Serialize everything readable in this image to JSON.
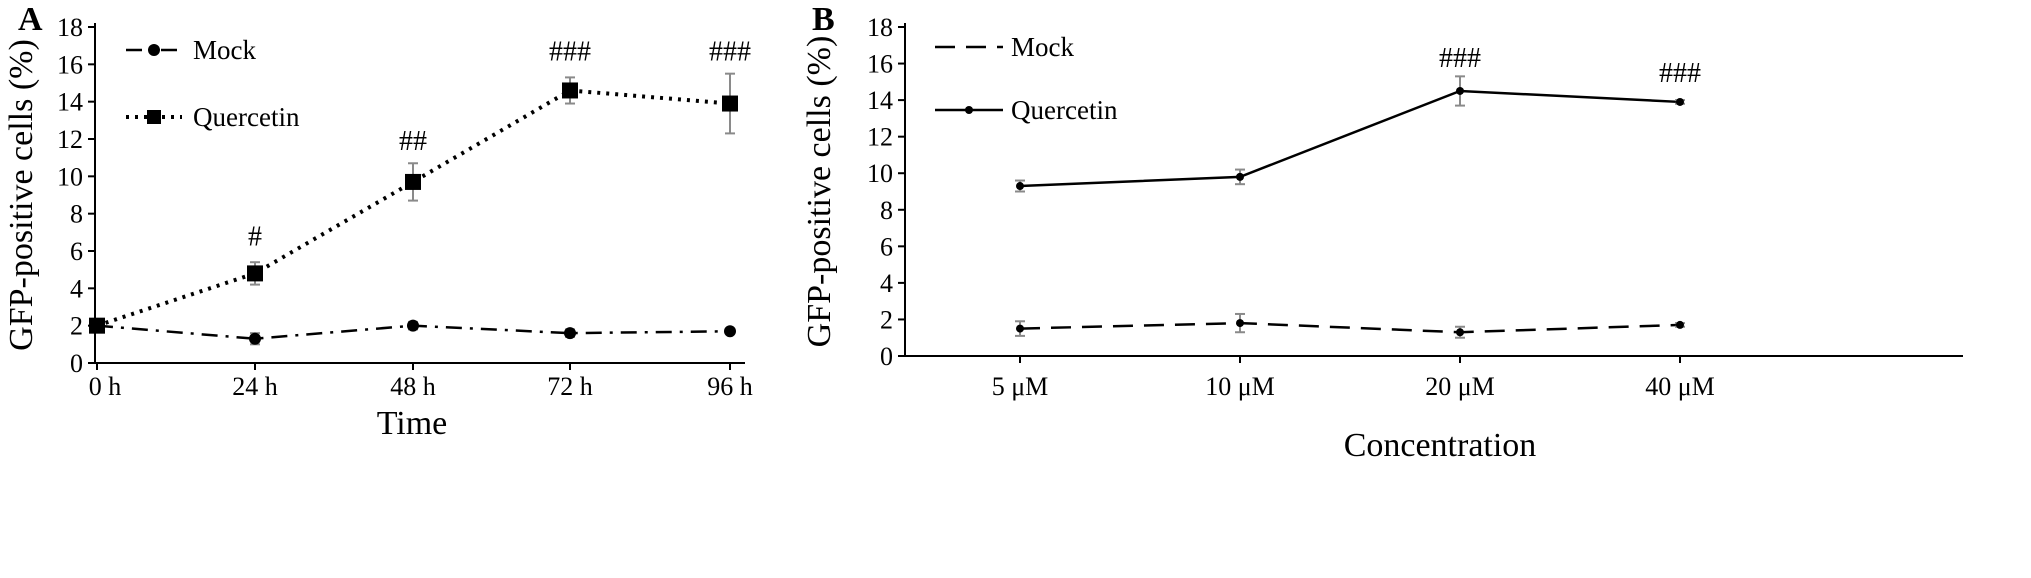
{
  "colors": {
    "ink": "#000000",
    "error_bar": "#8a8a8a",
    "background": "#ffffff"
  },
  "chart_data": [
    {
      "panel": "A",
      "type": "line",
      "xlabel": "Time",
      "ylabel": "GFP-positive cells (%)",
      "categories": [
        "0 h",
        "24 h",
        "48 h",
        "72 h",
        "96 h"
      ],
      "ylim": [
        0,
        18
      ],
      "yticks": [
        0,
        2,
        4,
        6,
        8,
        10,
        12,
        14,
        16,
        18
      ],
      "legend_position": "top-left",
      "grid": false,
      "series": [
        {
          "name": "Mock",
          "line_style": "dash-dot",
          "marker": "circle",
          "values": [
            2.0,
            1.3,
            2.0,
            1.6,
            1.7
          ],
          "errors": [
            0.1,
            0.3,
            0.2,
            0.2,
            0.1
          ]
        },
        {
          "name": "Quercetin",
          "line_style": "dotted",
          "marker": "square",
          "values": [
            2.0,
            4.8,
            9.7,
            14.6,
            13.9
          ],
          "errors": [
            0.1,
            0.6,
            1.0,
            0.7,
            1.6
          ]
        }
      ],
      "annotations": [
        {
          "category": "24 h",
          "text": "#",
          "y": 6.3
        },
        {
          "category": "48 h",
          "text": "##",
          "y": 11.4
        },
        {
          "category": "72 h",
          "text": "###",
          "y": 16.2
        },
        {
          "category": "96 h",
          "text": "###",
          "y": 16.2
        }
      ]
    },
    {
      "panel": "B",
      "type": "line",
      "xlabel": "Concentration",
      "ylabel": "GFP-positive cells (%)",
      "categories": [
        "5 μM",
        "10 μM",
        "20 μM",
        "40 μM"
      ],
      "ylim": [
        0,
        18
      ],
      "yticks": [
        0,
        2,
        4,
        6,
        8,
        10,
        12,
        14,
        16,
        18
      ],
      "legend_position": "top-left",
      "grid": false,
      "series": [
        {
          "name": "Mock",
          "line_style": "dashed",
          "marker": "small",
          "values": [
            1.5,
            1.8,
            1.3,
            1.7
          ],
          "errors": [
            0.4,
            0.5,
            0.3,
            0.1
          ]
        },
        {
          "name": "Quercetin",
          "line_style": "solid",
          "marker": "small",
          "values": [
            9.3,
            9.8,
            14.5,
            13.9
          ],
          "errors": [
            0.3,
            0.4,
            0.8,
            0.1
          ]
        }
      ],
      "annotations": [
        {
          "category": "20 μM",
          "text": "###",
          "y": 15.8
        },
        {
          "category": "40 μM",
          "text": "###",
          "y": 15.0
        }
      ]
    }
  ]
}
